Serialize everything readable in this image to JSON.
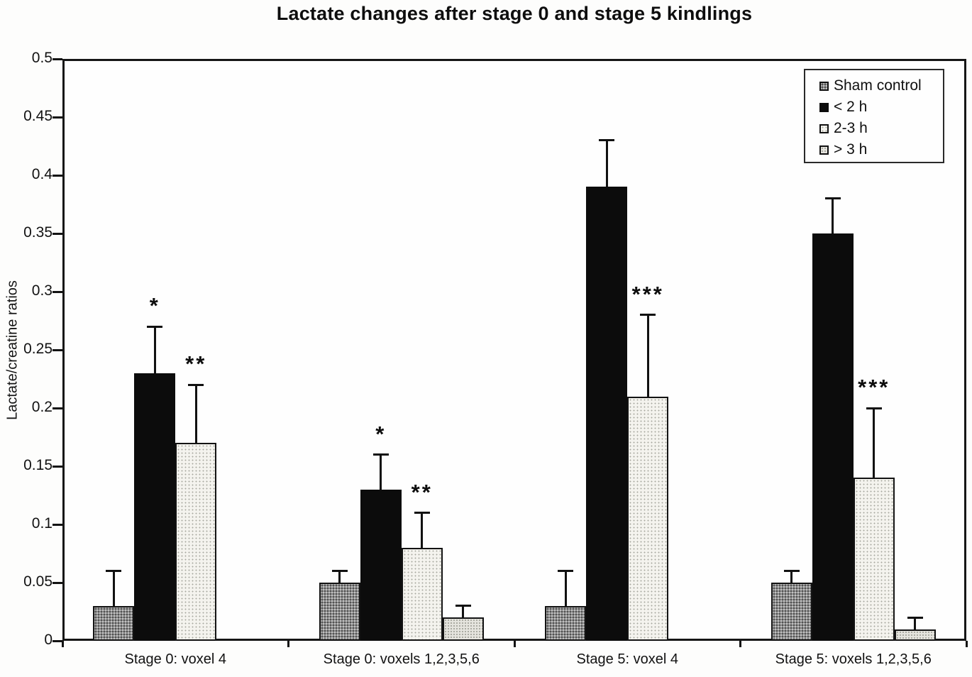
{
  "figure": {
    "title": "Lactate changes after stage 0 and stage 5 kindlings"
  },
  "chart_data": {
    "type": "bar",
    "title": "Lactate changes after stage 0 and stage 5 kindlings",
    "xlabel": "",
    "ylabel": "Lactate/creatine ratios",
    "ylim": [
      0,
      0.5
    ],
    "ytick_step": 0.05,
    "ytick_labels": [
      "0",
      "0.05",
      "0.1",
      "0.15",
      "0.2",
      "0.25",
      "0.3",
      "0.35",
      "0.4",
      "0.45",
      "0.5"
    ],
    "grid": false,
    "legend_position": "top-right-inside",
    "error_bars": "upper-only",
    "categories": [
      "Stage 0: voxel 4",
      "Stage 0: voxels 1,2,3,5,6",
      "Stage 5: voxel 4",
      "Stage 5: voxels 1,2,3,5,6"
    ],
    "series": [
      {
        "name": "Sham control",
        "texture": "speckled-gray",
        "color": "#8d8d8d",
        "values": [
          0.03,
          0.05,
          0.03,
          0.05
        ],
        "errors": [
          0.03,
          0.01,
          0.03,
          0.01
        ],
        "sig": [
          "",
          "",
          "",
          ""
        ]
      },
      {
        "name": "< 2 h",
        "texture": "solid-black",
        "color": "#0c0c0c",
        "values": [
          0.23,
          0.13,
          0.39,
          0.35
        ],
        "errors": [
          0.04,
          0.03,
          0.04,
          0.03
        ],
        "sig": [
          "*",
          "*",
          "",
          ""
        ]
      },
      {
        "name": "2-3 h",
        "texture": "light-stipple",
        "color": "#f4f3ee",
        "values": [
          0.17,
          0.08,
          0.21,
          0.14
        ],
        "errors": [
          0.05,
          0.03,
          0.07,
          0.06
        ],
        "sig": [
          "**",
          "**",
          "***",
          "***"
        ]
      },
      {
        "name": "> 3 h",
        "texture": "gray-stipple",
        "color": "#e5e4de",
        "values": [
          null,
          0.02,
          null,
          0.01
        ],
        "errors": [
          null,
          0.01,
          null,
          0.01
        ],
        "sig": [
          "",
          "",
          "",
          ""
        ]
      }
    ]
  }
}
